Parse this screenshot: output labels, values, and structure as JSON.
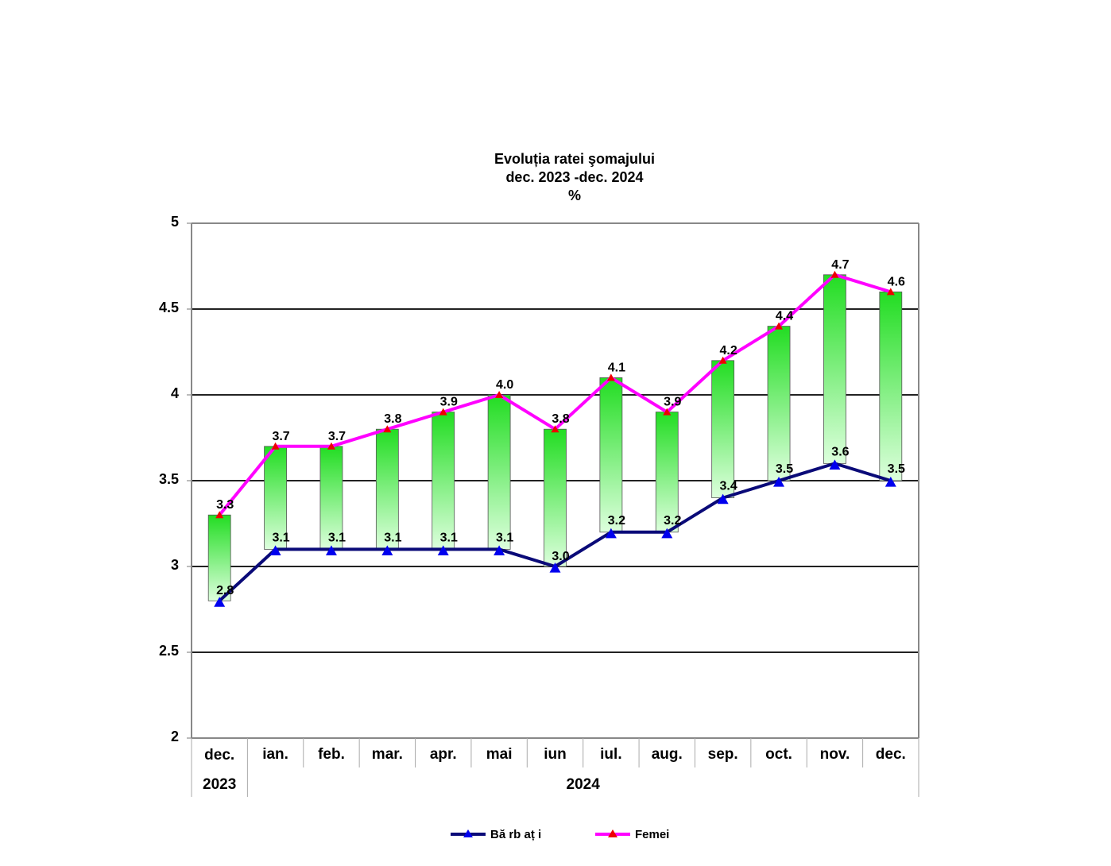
{
  "chart_data": {
    "type": "line",
    "title": [
      "Evoluția ratei şomajului",
      "dec. 2023 -dec. 2024",
      "%"
    ],
    "ylim": [
      2,
      5
    ],
    "yticks": [
      "2",
      "2.5",
      "3",
      "3.5",
      "4",
      "4.5",
      "5"
    ],
    "grid": true,
    "categories": [
      "dec.",
      "ian.",
      "feb.",
      "mar.",
      "apr.",
      "mai",
      "iun",
      "iul.",
      "aug.",
      "sep.",
      "oct.",
      "nov.",
      "dec."
    ],
    "year_groups": [
      {
        "label": "2023",
        "span": 1
      },
      {
        "label": "2024",
        "span": 12
      }
    ],
    "series": [
      {
        "name": "Bă rb aț i",
        "values": [
          2.8,
          3.1,
          3.1,
          3.1,
          3.1,
          3.1,
          3.0,
          3.2,
          3.2,
          3.4,
          3.5,
          3.6,
          3.5
        ]
      },
      {
        "name": "Femei",
        "values": [
          3.3,
          3.7,
          3.7,
          3.8,
          3.9,
          4.0,
          3.8,
          4.1,
          3.9,
          4.2,
          4.4,
          4.7,
          4.6
        ]
      }
    ],
    "bars": "high-low bars between series",
    "legend_position": "bottom"
  },
  "colors": {
    "men": "#0a0a78",
    "women": "#ff00ff",
    "men_marker": "#0000ee",
    "women_marker": "#ee0000",
    "bar_top": "#22dd22",
    "bar_bottom": "#ddffdd",
    "gridline": "#222222"
  }
}
